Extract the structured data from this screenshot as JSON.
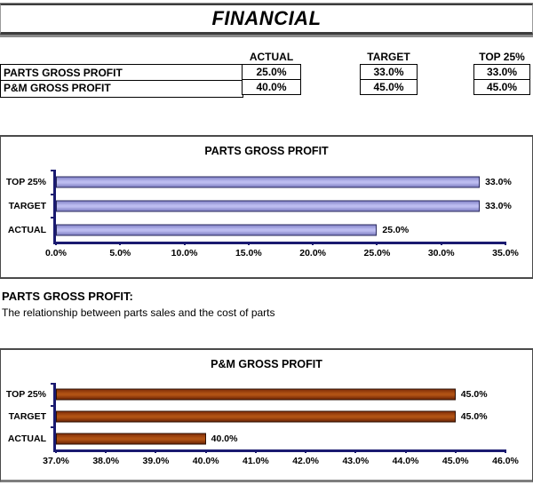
{
  "header": {
    "title": "FINANCIAL"
  },
  "summary_table": {
    "columns": [
      "ACTUAL",
      "TARGET",
      "TOP 25%"
    ],
    "rows": [
      {
        "label": "PARTS GROSS PROFIT",
        "actual": "25.0%",
        "target": "33.0%",
        "top25": "33.0%"
      },
      {
        "label": "P&M GROSS PROFIT",
        "actual": "40.0%",
        "target": "45.0%",
        "top25": "45.0%"
      }
    ]
  },
  "description": {
    "heading": "PARTS GROSS PROFIT:",
    "body": "The relationship between parts sales and the cost of parts"
  },
  "chart_data": [
    {
      "type": "bar",
      "orientation": "horizontal",
      "title": "PARTS GROSS PROFIT",
      "categories": [
        "TOP 25%",
        "TARGET",
        "ACTUAL"
      ],
      "values": [
        33.0,
        33.0,
        25.0
      ],
      "value_labels": [
        "33.0%",
        "33.0%",
        "25.0%"
      ],
      "xlim": [
        0,
        35
      ],
      "tick_labels": [
        "0.0%",
        "5.0%",
        "10.0%",
        "15.0%",
        "20.0%",
        "25.0%",
        "30.0%",
        "35.0%"
      ],
      "grid": false,
      "legend": false,
      "colors": {
        "axis": "#1a1a70",
        "bar_border": "#29295c",
        "bar_top": "#8585ca",
        "bar_mid": "#bcbcf0",
        "bar_bottom": "#7f7fc2"
      }
    },
    {
      "type": "bar",
      "orientation": "horizontal",
      "title": "P&M GROSS PROFIT",
      "categories": [
        "TOP 25%",
        "TARGET",
        "ACTUAL"
      ],
      "values": [
        45.0,
        45.0,
        40.0
      ],
      "value_labels": [
        "45.0%",
        "45.0%",
        "40.0%"
      ],
      "xlim": [
        37,
        46
      ],
      "tick_labels": [
        "37.0%",
        "38.0%",
        "39.0%",
        "40.0%",
        "41.0%",
        "42.0%",
        "43.0%",
        "44.0%",
        "45.0%",
        "46.0%"
      ],
      "grid": false,
      "legend": false,
      "colors": {
        "axis": "#1a1a70",
        "bar_border": "#2e1003",
        "bar_top": "#83300a",
        "bar_mid": "#b05214",
        "bar_bottom": "#6e2606"
      }
    }
  ]
}
